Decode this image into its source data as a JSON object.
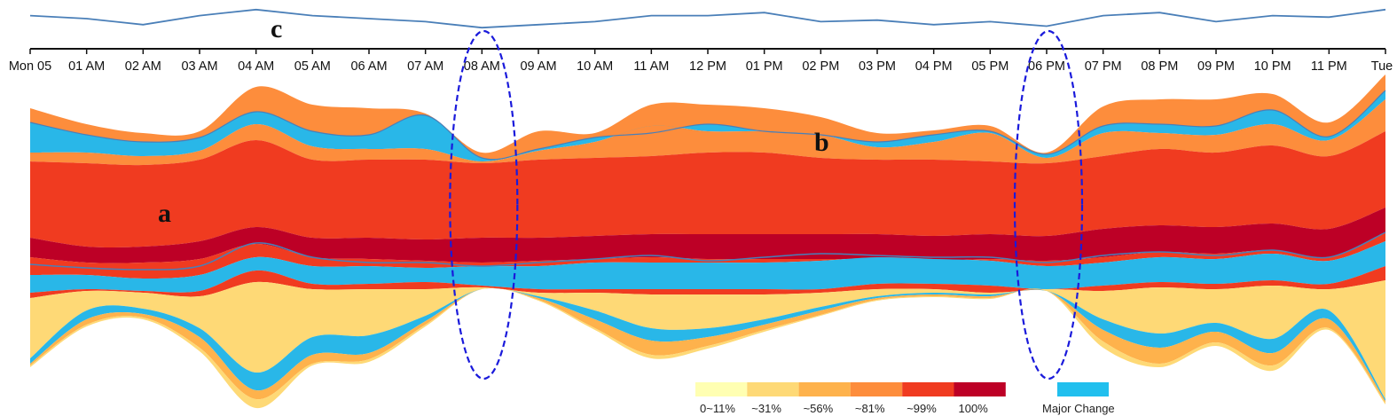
{
  "chart_data": {
    "type": "area",
    "x_ticks": [
      "Mon 05",
      "01 AM",
      "02 AM",
      "03 AM",
      "04 AM",
      "05 AM",
      "06 AM",
      "07 AM",
      "08 AM",
      "09 AM",
      "10 AM",
      "11 AM",
      "12 PM",
      "01 PM",
      "02 PM",
      "03 PM",
      "04 PM",
      "05 PM",
      "06 PM",
      "07 PM",
      "08 PM",
      "09 PM",
      "10 PM",
      "11 PM",
      "Tue"
    ],
    "annotations": [
      "a",
      "b",
      "c"
    ],
    "highlighted_ticks": [
      "08 AM",
      "06 PM"
    ],
    "legend": {
      "levels": [
        {
          "label": "0~11%",
          "color": "#ffffb2"
        },
        {
          "label": "~31%",
          "color": "#fed976"
        },
        {
          "label": "~56%",
          "color": "#feb24c"
        },
        {
          "label": "~81%",
          "color": "#fd8d3c"
        },
        {
          "label": "~99%",
          "color": "#f03b20"
        },
        {
          "label": "100%",
          "color": "#bd0026"
        }
      ],
      "change": {
        "label": "Major Change",
        "color": "#21bfee"
      }
    },
    "colors": {
      "line": "#4a7fb8",
      "band_cyan": "#29b7e8",
      "ellipse": "#1a1adb"
    },
    "series": [
      {
        "values": [
          12,
          10,
          6,
          12,
          16,
          12,
          10,
          8,
          4,
          6,
          8,
          12,
          12,
          14,
          8,
          9,
          6,
          8,
          5,
          12,
          14,
          8,
          12,
          11,
          16
        ]
      }
    ]
  }
}
